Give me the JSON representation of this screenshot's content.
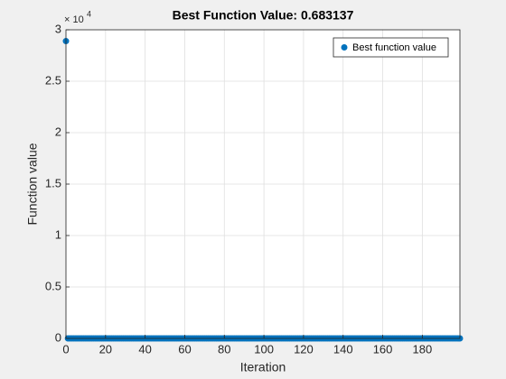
{
  "chart_data": {
    "type": "scatter",
    "title": "Best Function Value: 0.683137",
    "xlabel": "Iteration",
    "ylabel": "Function value",
    "y_multiplier_base": "× 10",
    "y_multiplier_power": "4",
    "xlim": [
      0,
      199
    ],
    "xticks": [
      0,
      20,
      40,
      60,
      80,
      100,
      120,
      140,
      160,
      180
    ],
    "ylim": [
      0,
      30000
    ],
    "yticks": [
      {
        "value": 0,
        "label": "0"
      },
      {
        "value": 5000,
        "label": "0.5"
      },
      {
        "value": 10000,
        "label": "1"
      },
      {
        "value": 15000,
        "label": "1.5"
      },
      {
        "value": 20000,
        "label": "2"
      },
      {
        "value": 25000,
        "label": "2.5"
      },
      {
        "value": 30000,
        "label": "3"
      }
    ],
    "grid": true,
    "legend": "northeast",
    "x": [
      0,
      1,
      2,
      3,
      4,
      5,
      6,
      7,
      8,
      9,
      10,
      11,
      12,
      13,
      14,
      15,
      16,
      17,
      18,
      19,
      20,
      21,
      22,
      23,
      24,
      25,
      26,
      27,
      28,
      29,
      30,
      31,
      32,
      33,
      34,
      35,
      36,
      37,
      38,
      39,
      40,
      41,
      42,
      43,
      44,
      45,
      46,
      47,
      48,
      49,
      50,
      51,
      52,
      53,
      54,
      55,
      56,
      57,
      58,
      59,
      60,
      61,
      62,
      63,
      64,
      65,
      66,
      67,
      68,
      69,
      70,
      71,
      72,
      73,
      74,
      75,
      76,
      77,
      78,
      79,
      80,
      81,
      82,
      83,
      84,
      85,
      86,
      87,
      88,
      89,
      90,
      91,
      92,
      93,
      94,
      95,
      96,
      97,
      98,
      99,
      100,
      101,
      102,
      103,
      104,
      105,
      106,
      107,
      108,
      109,
      110,
      111,
      112,
      113,
      114,
      115,
      116,
      117,
      118,
      119,
      120,
      121,
      122,
      123,
      124,
      125,
      126,
      127,
      128,
      129,
      130,
      131,
      132,
      133,
      134,
      135,
      136,
      137,
      138,
      139,
      140,
      141,
      142,
      143,
      144,
      145,
      146,
      147,
      148,
      149,
      150,
      151,
      152,
      153,
      154,
      155,
      156,
      157,
      158,
      159,
      160,
      161,
      162,
      163,
      164,
      165,
      166,
      167,
      168,
      169,
      170,
      171,
      172,
      173,
      174,
      175,
      176,
      177,
      178,
      179,
      180,
      181,
      182,
      183,
      184,
      185,
      186,
      187,
      188,
      189,
      190,
      191,
      192,
      193,
      194,
      195,
      196,
      197,
      198,
      199
    ],
    "series": [
      {
        "name": "Best function value",
        "color": "#0072bd",
        "values": [
          28900,
          0.7,
          0.7,
          0.7,
          0.7,
          0.7,
          0.7,
          0.7,
          0.7,
          0.7,
          0.7,
          0.7,
          0.7,
          0.7,
          0.7,
          0.7,
          0.7,
          0.7,
          0.7,
          0.7,
          0.7,
          0.7,
          0.7,
          0.7,
          0.7,
          0.7,
          0.7,
          0.7,
          0.7,
          0.7,
          0.7,
          0.7,
          0.7,
          0.7,
          0.7,
          0.7,
          0.7,
          0.7,
          0.7,
          0.7,
          0.7,
          0.7,
          0.7,
          0.7,
          0.7,
          0.7,
          0.7,
          0.7,
          0.7,
          0.7,
          0.7,
          0.7,
          0.7,
          0.7,
          0.7,
          0.7,
          0.7,
          0.7,
          0.7,
          0.7,
          0.7,
          0.7,
          0.7,
          0.7,
          0.7,
          0.7,
          0.7,
          0.7,
          0.7,
          0.7,
          0.7,
          0.7,
          0.7,
          0.7,
          0.7,
          0.7,
          0.7,
          0.7,
          0.7,
          0.7,
          0.7,
          0.7,
          0.7,
          0.7,
          0.7,
          0.7,
          0.7,
          0.7,
          0.7,
          0.7,
          0.7,
          0.7,
          0.7,
          0.7,
          0.7,
          0.7,
          0.7,
          0.7,
          0.7,
          0.7,
          0.7,
          0.7,
          0.7,
          0.7,
          0.7,
          0.7,
          0.7,
          0.7,
          0.7,
          0.7,
          0.7,
          0.7,
          0.7,
          0.7,
          0.7,
          0.7,
          0.7,
          0.7,
          0.7,
          0.7,
          0.7,
          0.7,
          0.7,
          0.7,
          0.7,
          0.7,
          0.7,
          0.7,
          0.7,
          0.7,
          0.7,
          0.7,
          0.7,
          0.7,
          0.7,
          0.7,
          0.7,
          0.7,
          0.7,
          0.7,
          0.7,
          0.7,
          0.7,
          0.7,
          0.7,
          0.7,
          0.7,
          0.7,
          0.7,
          0.7,
          0.7,
          0.7,
          0.7,
          0.7,
          0.7,
          0.7,
          0.7,
          0.7,
          0.7,
          0.7,
          0.7,
          0.7,
          0.7,
          0.7,
          0.7,
          0.7,
          0.7,
          0.7,
          0.7,
          0.7,
          0.7,
          0.7,
          0.7,
          0.7,
          0.7,
          0.7,
          0.7,
          0.7,
          0.7,
          0.7,
          0.7,
          0.7,
          0.7,
          0.7,
          0.7,
          0.7,
          0.7,
          0.7,
          0.7,
          0.7,
          0.7,
          0.7,
          0.7,
          0.7,
          0.7,
          0.7,
          0.7,
          0.7,
          0.7,
          0.683137
        ]
      }
    ]
  }
}
